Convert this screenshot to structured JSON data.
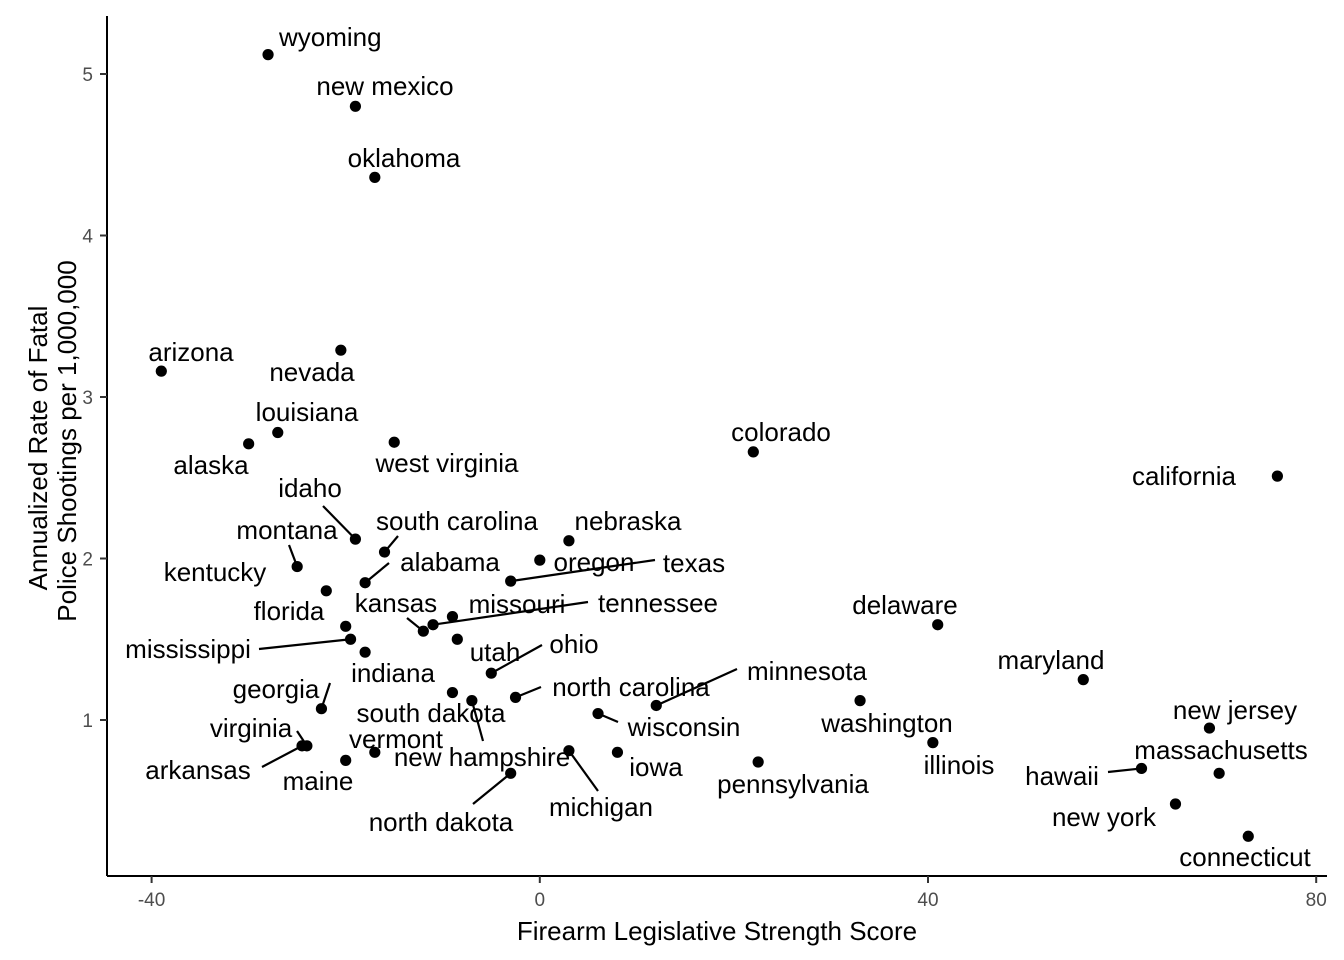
{
  "chart_data": {
    "type": "scatter",
    "title": "",
    "xlabel": "Firearm Legislative Strength Score",
    "ylabel_lines": [
      "Annualized Rate of Fatal",
      "Police Shootings per 1,000,000"
    ],
    "xlim": [
      -44,
      81
    ],
    "ylim": [
      0.28,
      5.35
    ],
    "xticks": [
      -40,
      0,
      40,
      80
    ],
    "yticks": [
      1,
      2,
      3,
      4,
      5
    ],
    "grid": false,
    "legend": "none",
    "point_color": "#000000",
    "points": [
      {
        "label": "wyoming",
        "x": -28,
        "y": 5.12
      },
      {
        "label": "new mexico",
        "x": -19,
        "y": 4.8
      },
      {
        "label": "oklahoma",
        "x": -17,
        "y": 4.36
      },
      {
        "label": "arizona",
        "x": -39,
        "y": 3.16
      },
      {
        "label": "nevada",
        "x": -20.5,
        "y": 3.29
      },
      {
        "label": "louisiana",
        "x": -27,
        "y": 2.78
      },
      {
        "label": "alaska",
        "x": -30,
        "y": 2.71
      },
      {
        "label": "west virginia",
        "x": -15,
        "y": 2.72
      },
      {
        "label": "colorado",
        "x": 22,
        "y": 2.66
      },
      {
        "label": "california",
        "x": 76,
        "y": 2.51
      },
      {
        "label": "idaho",
        "x": -19,
        "y": 2.12
      },
      {
        "label": "south carolina",
        "x": -16,
        "y": 2.04
      },
      {
        "label": "nebraska",
        "x": 3,
        "y": 2.11
      },
      {
        "label": "montana",
        "x": -25,
        "y": 1.95
      },
      {
        "label": "alabama",
        "x": -18,
        "y": 1.85
      },
      {
        "label": "oregon",
        "x": 0,
        "y": 1.99
      },
      {
        "label": "texas",
        "x": -3,
        "y": 1.86
      },
      {
        "label": "kentucky",
        "x": -22,
        "y": 1.8
      },
      {
        "label": "florida",
        "x": -20,
        "y": 1.58
      },
      {
        "label": "kansas",
        "x": -12,
        "y": 1.55
      },
      {
        "label": "missouri",
        "x": -9,
        "y": 1.64
      },
      {
        "label": "tennessee",
        "x": -11,
        "y": 1.59
      },
      {
        "label": "delaware",
        "x": 41,
        "y": 1.59
      },
      {
        "label": "mississippi",
        "x": -19.5,
        "y": 1.5
      },
      {
        "label": "utah",
        "x": -8.5,
        "y": 1.5
      },
      {
        "label": "ohio",
        "x": -5,
        "y": 1.29
      },
      {
        "label": "indiana",
        "x": -18,
        "y": 1.42
      },
      {
        "label": "maryland",
        "x": 56,
        "y": 1.25
      },
      {
        "label": "georgia",
        "x": -22.5,
        "y": 1.07
      },
      {
        "label": "minnesota",
        "x": 12,
        "y": 1.09
      },
      {
        "label": "north carolina",
        "x": -2.5,
        "y": 1.14
      },
      {
        "label": "south dakota",
        "x": -9,
        "y": 1.17
      },
      {
        "label": "new hampshire",
        "x": -7,
        "y": 1.12
      },
      {
        "label": "washington",
        "x": 33,
        "y": 1.12
      },
      {
        "label": "wisconsin",
        "x": 6,
        "y": 1.04
      },
      {
        "label": "new jersey",
        "x": 69,
        "y": 0.95
      },
      {
        "label": "virginia",
        "x": -24,
        "y": 0.84
      },
      {
        "label": "illinois",
        "x": 40.5,
        "y": 0.86
      },
      {
        "label": "vermont",
        "x": -17,
        "y": 0.8
      },
      {
        "label": "maine",
        "x": -20,
        "y": 0.75
      },
      {
        "label": "arkansas",
        "x": -24.5,
        "y": 0.84
      },
      {
        "label": "michigan",
        "x": 3,
        "y": 0.81
      },
      {
        "label": "iowa",
        "x": 8,
        "y": 0.8
      },
      {
        "label": "pennsylvania",
        "x": 22.5,
        "y": 0.74
      },
      {
        "label": "hawaii",
        "x": 62,
        "y": 0.7
      },
      {
        "label": "massachusetts",
        "x": 70,
        "y": 0.67
      },
      {
        "label": "north dakota",
        "x": -3,
        "y": 0.67
      },
      {
        "label": "new york",
        "x": 65.5,
        "y": 0.48
      },
      {
        "label": "connecticut",
        "x": 73,
        "y": 0.28
      }
    ]
  }
}
